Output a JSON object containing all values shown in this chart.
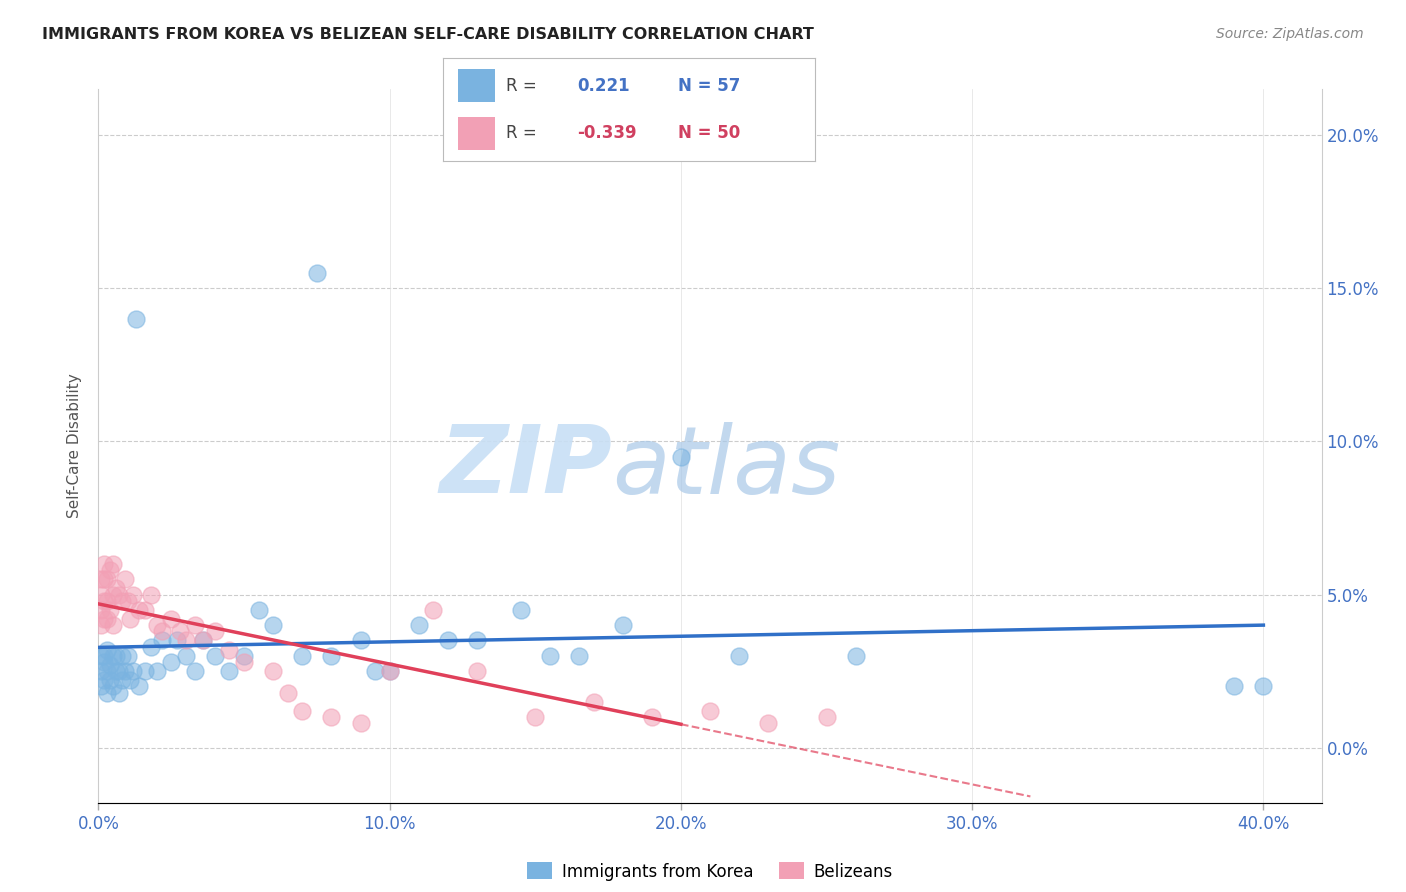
{
  "title": "IMMIGRANTS FROM KOREA VS BELIZEAN SELF-CARE DISABILITY CORRELATION CHART",
  "source": "Source: ZipAtlas.com",
  "ylabel": "Self-Care Disability",
  "xlim": [
    0.0,
    0.42
  ],
  "ylim": [
    -0.018,
    0.215
  ],
  "yticks": [
    0.0,
    0.05,
    0.1,
    0.15,
    0.2
  ],
  "ytick_labels": [
    "0.0%",
    "5.0%",
    "10.0%",
    "15.0%",
    "20.0%"
  ],
  "xticks": [
    0.0,
    0.1,
    0.2,
    0.3,
    0.4
  ],
  "xtick_labels": [
    "0.0%",
    "10.0%",
    "20.0%",
    "30.0%",
    "40.0%"
  ],
  "korea_R": 0.221,
  "korea_N": 57,
  "belize_R": -0.339,
  "belize_N": 50,
  "korea_color": "#7ab3e0",
  "belize_color": "#f2a0b5",
  "korea_line_color": "#3070c8",
  "belize_line_color": "#e0405a",
  "watermark_zip": "ZIP",
  "watermark_atlas": "atlas",
  "korea_x": [
    0.001,
    0.001,
    0.001,
    0.002,
    0.002,
    0.002,
    0.003,
    0.003,
    0.003,
    0.004,
    0.004,
    0.005,
    0.005,
    0.006,
    0.006,
    0.007,
    0.007,
    0.008,
    0.008,
    0.009,
    0.01,
    0.011,
    0.012,
    0.013,
    0.014,
    0.016,
    0.018,
    0.02,
    0.022,
    0.025,
    0.027,
    0.03,
    0.033,
    0.036,
    0.04,
    0.045,
    0.05,
    0.055,
    0.06,
    0.07,
    0.075,
    0.08,
    0.09,
    0.095,
    0.1,
    0.11,
    0.12,
    0.13,
    0.145,
    0.155,
    0.165,
    0.18,
    0.2,
    0.22,
    0.26,
    0.39,
    0.4
  ],
  "korea_y": [
    0.025,
    0.03,
    0.02,
    0.028,
    0.022,
    0.03,
    0.025,
    0.032,
    0.018,
    0.027,
    0.022,
    0.03,
    0.02,
    0.025,
    0.03,
    0.025,
    0.018,
    0.03,
    0.022,
    0.025,
    0.03,
    0.022,
    0.025,
    0.14,
    0.02,
    0.025,
    0.033,
    0.025,
    0.035,
    0.028,
    0.035,
    0.03,
    0.025,
    0.035,
    0.03,
    0.025,
    0.03,
    0.045,
    0.04,
    0.03,
    0.155,
    0.03,
    0.035,
    0.025,
    0.025,
    0.04,
    0.035,
    0.035,
    0.045,
    0.03,
    0.03,
    0.04,
    0.095,
    0.03,
    0.03,
    0.02,
    0.02
  ],
  "belize_x": [
    0.001,
    0.001,
    0.001,
    0.001,
    0.002,
    0.002,
    0.002,
    0.002,
    0.003,
    0.003,
    0.003,
    0.004,
    0.004,
    0.005,
    0.005,
    0.005,
    0.006,
    0.007,
    0.008,
    0.009,
    0.01,
    0.011,
    0.012,
    0.014,
    0.016,
    0.018,
    0.02,
    0.022,
    0.025,
    0.028,
    0.03,
    0.033,
    0.036,
    0.04,
    0.045,
    0.05,
    0.06,
    0.065,
    0.07,
    0.08,
    0.09,
    0.1,
    0.115,
    0.13,
    0.15,
    0.17,
    0.19,
    0.21,
    0.23,
    0.25
  ],
  "belize_y": [
    0.055,
    0.05,
    0.045,
    0.04,
    0.06,
    0.055,
    0.048,
    0.042,
    0.055,
    0.048,
    0.042,
    0.058,
    0.045,
    0.06,
    0.05,
    0.04,
    0.052,
    0.05,
    0.048,
    0.055,
    0.048,
    0.042,
    0.05,
    0.045,
    0.045,
    0.05,
    0.04,
    0.038,
    0.042,
    0.038,
    0.035,
    0.04,
    0.035,
    0.038,
    0.032,
    0.028,
    0.025,
    0.018,
    0.012,
    0.01,
    0.008,
    0.025,
    0.045,
    0.025,
    0.01,
    0.015,
    0.01,
    0.012,
    0.008,
    0.01
  ]
}
